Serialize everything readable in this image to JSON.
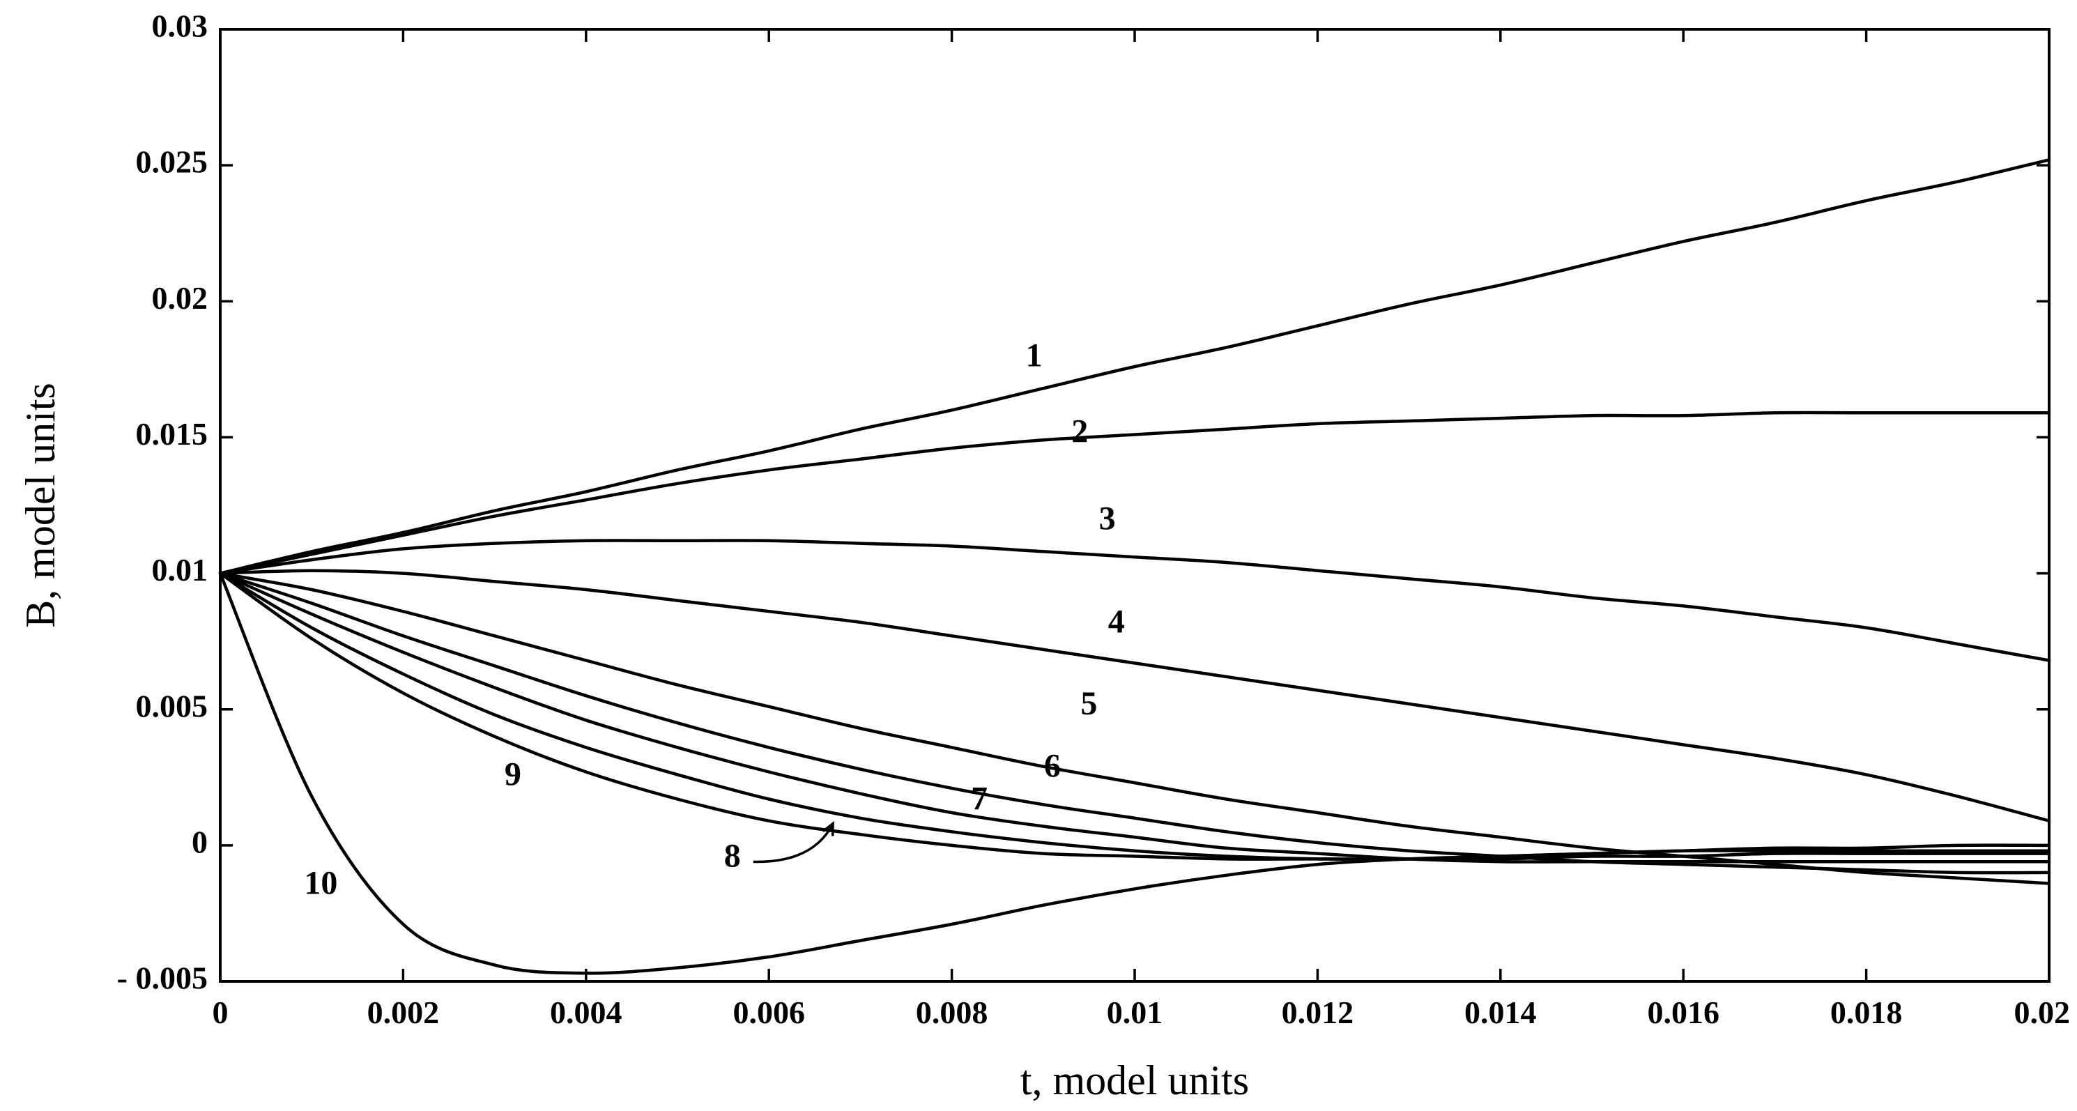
{
  "chart_data": {
    "type": "line",
    "xlabel": "t, model units",
    "ylabel": "B, model units",
    "xlim": [
      0,
      0.02
    ],
    "ylim": [
      -0.005,
      0.03
    ],
    "grid": false,
    "legend": "none",
    "x_ticks": [
      0,
      0.002,
      0.004,
      0.006,
      0.008,
      0.01,
      0.012,
      0.014,
      0.016,
      0.018,
      0.02
    ],
    "x_tick_labels": [
      "0",
      "0.002",
      "0.004",
      "0.006",
      "0.008",
      "0.01",
      "0.012",
      "0.014",
      "0.016",
      "0.018",
      "0.02"
    ],
    "y_ticks": [
      -0.005,
      0,
      0.005,
      0.01,
      0.015,
      0.02,
      0.025,
      0.03
    ],
    "y_tick_labels": [
      "- 0.005",
      "0",
      "0.005",
      "0.01",
      "0.015",
      "0.02",
      "0.025",
      "0.03"
    ],
    "x": [
      0,
      0.001,
      0.002,
      0.003,
      0.004,
      0.005,
      0.006,
      0.007,
      0.008,
      0.009,
      0.01,
      0.011,
      0.012,
      0.013,
      0.014,
      0.015,
      0.016,
      0.017,
      0.018,
      0.019,
      0.02
    ],
    "series": [
      {
        "label": "1",
        "label_at": [
          0.0089,
          0.0179
        ],
        "values": [
          0.01,
          0.0108,
          0.0115,
          0.0123,
          0.013,
          0.0138,
          0.0145,
          0.0153,
          0.016,
          0.0168,
          0.0176,
          0.0183,
          0.0191,
          0.0199,
          0.0206,
          0.0214,
          0.0222,
          0.0229,
          0.0237,
          0.0244,
          0.0252
        ]
      },
      {
        "label": "2",
        "label_at": [
          0.0094,
          0.0151
        ],
        "values": [
          0.01,
          0.0107,
          0.0114,
          0.0121,
          0.0127,
          0.0133,
          0.0138,
          0.0142,
          0.0146,
          0.0149,
          0.0151,
          0.0153,
          0.0155,
          0.0156,
          0.0157,
          0.0158,
          0.0158,
          0.0159,
          0.0159,
          0.0159,
          0.0159
        ]
      },
      {
        "label": "3",
        "label_at": [
          0.0097,
          0.0119
        ],
        "values": [
          0.01,
          0.0105,
          0.0109,
          0.0111,
          0.0112,
          0.0112,
          0.0112,
          0.0111,
          0.011,
          0.0108,
          0.0106,
          0.0104,
          0.0101,
          0.0098,
          0.0095,
          0.0091,
          0.0088,
          0.0084,
          0.008,
          0.0074,
          0.0068
        ]
      },
      {
        "label": "4",
        "label_at": [
          0.0098,
          0.0081
        ],
        "values": [
          0.01,
          0.0101,
          0.01,
          0.0097,
          0.0094,
          0.009,
          0.0086,
          0.0082,
          0.0077,
          0.0072,
          0.0067,
          0.0062,
          0.0057,
          0.0052,
          0.0047,
          0.0042,
          0.0037,
          0.0032,
          0.0026,
          0.0018,
          0.0009
        ]
      },
      {
        "label": "5",
        "label_at": [
          0.0095,
          0.0051
        ],
        "values": [
          0.01,
          0.0094,
          0.0086,
          0.0077,
          0.0068,
          0.0059,
          0.0051,
          0.0043,
          0.0036,
          0.0029,
          0.0023,
          0.0017,
          0.0012,
          0.0007,
          0.0003,
          -0.0001,
          -0.0004,
          -0.0007,
          -0.001,
          -0.0012,
          -0.0014
        ]
      },
      {
        "label": "6",
        "label_at": [
          0.0091,
          0.0028
        ],
        "values": [
          0.01,
          0.0089,
          0.0077,
          0.0066,
          0.0055,
          0.0045,
          0.0036,
          0.0028,
          0.0021,
          0.0015,
          0.001,
          0.0005,
          0.0001,
          -0.0002,
          -0.0004,
          -0.0006,
          -0.0007,
          -0.0008,
          -0.0009,
          -0.001,
          -0.001
        ]
      },
      {
        "label": "7",
        "label_at": [
          0.0083,
          0.0016
        ],
        "values": [
          0.01,
          0.0085,
          0.0071,
          0.0058,
          0.0046,
          0.0036,
          0.0027,
          0.0019,
          0.0012,
          0.0007,
          0.0003,
          -0.0001,
          -0.0003,
          -0.0005,
          -0.0006,
          -0.0006,
          -0.0006,
          -0.0006,
          -0.0006,
          -0.0006,
          -0.0006
        ]
      },
      {
        "label": "8",
        "label_at": [
          0.0056,
          -0.0005
        ],
        "values": [
          0.01,
          0.008,
          0.0063,
          0.0048,
          0.0036,
          0.0026,
          0.0017,
          0.001,
          0.0005,
          0.0001,
          -0.0002,
          -0.0004,
          -0.0005,
          -0.0005,
          -0.0005,
          -0.0004,
          -0.0004,
          -0.0003,
          -0.0003,
          -0.0003,
          -0.0003
        ]
      },
      {
        "label": "9",
        "label_at": [
          0.0032,
          0.0025
        ],
        "values": [
          0.01,
          0.0076,
          0.0056,
          0.004,
          0.0027,
          0.0017,
          0.0009,
          0.0004,
          0.0,
          -0.0003,
          -0.0004,
          -0.0005,
          -0.0005,
          -0.0005,
          -0.0004,
          -0.0003,
          -0.0002,
          -0.0001,
          -0.0001,
          0.0,
          0.0
        ]
      },
      {
        "label": "10",
        "label_at": [
          0.0011,
          -0.0015
        ],
        "values": [
          0.01,
          0.0018,
          -0.0029,
          -0.0044,
          -0.0047,
          -0.0045,
          -0.0041,
          -0.0035,
          -0.0029,
          -0.0022,
          -0.0016,
          -0.0011,
          -0.0007,
          -0.0005,
          -0.0004,
          -0.0003,
          -0.0002,
          -0.0002,
          -0.0002,
          -0.0002,
          -0.0002
        ]
      }
    ],
    "annotations": [
      {
        "type": "arrow",
        "from_series_label": "8",
        "to": [
          0.0067,
          0.0008
        ]
      }
    ]
  }
}
